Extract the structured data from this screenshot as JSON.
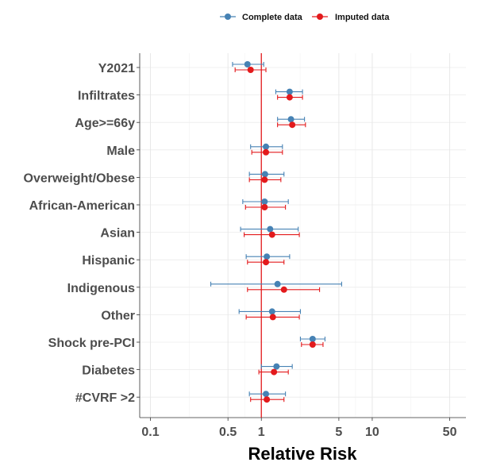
{
  "chart_data": {
    "type": "scatter",
    "subtype": "forest-plot",
    "title": "",
    "xlabel": "Relative Risk",
    "ylabel": "",
    "x_scale": "log",
    "xlim": [
      0.08,
      70
    ],
    "x_ticks": [
      0.1,
      0.5,
      1,
      5,
      10,
      50
    ],
    "x_tick_labels": [
      "0.1",
      "0.5",
      "1",
      "5",
      "10",
      "50"
    ],
    "reference_line": 1,
    "reference_line_color": "#e31a1c",
    "grid": true,
    "legend_position": "top",
    "categories": [
      "Y2021",
      "Infiltrates",
      "Age>=66y",
      "Male",
      "Overweight/Obese",
      "African-American",
      "Asian",
      "Hispanic",
      "Indigenous",
      "Other",
      "Shock pre-PCI",
      "Diabetes",
      "#CVRF >2"
    ],
    "series": [
      {
        "name": "Complete data",
        "color": "#4682b4",
        "estimate": [
          0.75,
          1.8,
          1.85,
          1.1,
          1.08,
          1.07,
          1.2,
          1.12,
          1.4,
          1.25,
          2.9,
          1.37,
          1.1
        ],
        "lower": [
          0.55,
          1.35,
          1.4,
          0.8,
          0.78,
          0.68,
          0.65,
          0.73,
          0.35,
          0.63,
          2.25,
          1.0,
          0.78
        ],
        "upper": [
          1.05,
          2.35,
          2.45,
          1.55,
          1.6,
          1.75,
          2.15,
          1.8,
          5.3,
          2.25,
          3.75,
          1.9,
          1.65
        ]
      },
      {
        "name": "Imputed data",
        "color": "#e31a1c",
        "estimate": [
          0.8,
          1.8,
          1.9,
          1.1,
          1.07,
          1.07,
          1.25,
          1.1,
          1.6,
          1.27,
          2.9,
          1.3,
          1.12
        ],
        "lower": [
          0.58,
          1.4,
          1.4,
          0.82,
          0.78,
          0.72,
          0.7,
          0.75,
          0.75,
          0.73,
          2.3,
          0.95,
          0.8
        ],
        "upper": [
          1.1,
          2.35,
          2.5,
          1.55,
          1.5,
          1.65,
          2.2,
          1.6,
          3.35,
          2.2,
          3.6,
          1.75,
          1.6
        ]
      }
    ]
  }
}
